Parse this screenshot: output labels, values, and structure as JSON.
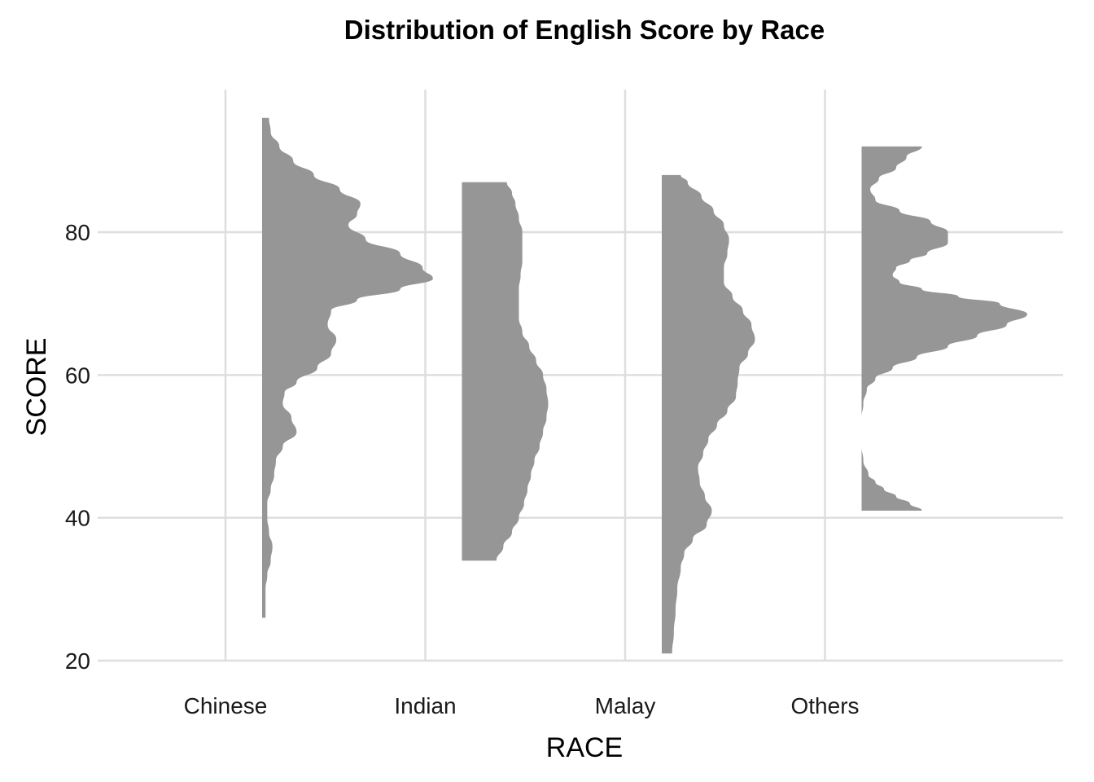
{
  "chart_data": {
    "type": "violin",
    "title": "Distribution of English Score by Race",
    "xlabel": "RACE",
    "ylabel": "SCORE",
    "categories": [
      "Chinese",
      "Indian",
      "Malay",
      "Others"
    ],
    "ylim": [
      18,
      98
    ],
    "yticks": [
      20,
      40,
      60,
      80
    ],
    "grid": true,
    "legend": "none",
    "colors": {
      "fill": "#969696",
      "grid": "#dedede",
      "text": "#000000"
    },
    "series": [
      {
        "category": "Chinese",
        "min": 26,
        "max": 96,
        "density": [
          [
            26,
            0.02
          ],
          [
            28,
            0.02
          ],
          [
            30,
            0.02
          ],
          [
            32,
            0.03
          ],
          [
            34,
            0.05
          ],
          [
            36,
            0.06
          ],
          [
            38,
            0.04
          ],
          [
            40,
            0.03
          ],
          [
            42,
            0.03
          ],
          [
            44,
            0.05
          ],
          [
            46,
            0.07
          ],
          [
            48,
            0.08
          ],
          [
            50,
            0.12
          ],
          [
            52,
            0.2
          ],
          [
            54,
            0.17
          ],
          [
            56,
            0.12
          ],
          [
            57.5,
            0.13
          ],
          [
            59,
            0.2
          ],
          [
            61,
            0.32
          ],
          [
            63,
            0.4
          ],
          [
            65,
            0.43
          ],
          [
            67,
            0.38
          ],
          [
            69,
            0.4
          ],
          [
            70.5,
            0.55
          ],
          [
            72,
            0.8
          ],
          [
            73.5,
            0.99
          ],
          [
            75,
            0.93
          ],
          [
            77,
            0.8
          ],
          [
            79,
            0.6
          ],
          [
            81,
            0.5
          ],
          [
            82.5,
            0.55
          ],
          [
            84,
            0.57
          ],
          [
            86,
            0.45
          ],
          [
            88,
            0.3
          ],
          [
            90,
            0.18
          ],
          [
            92,
            0.1
          ],
          [
            94,
            0.05
          ],
          [
            96,
            0.04
          ]
        ]
      },
      {
        "category": "Indian",
        "min": 34,
        "max": 87,
        "density": [
          [
            34,
            0.2
          ],
          [
            36,
            0.24
          ],
          [
            38,
            0.29
          ],
          [
            40,
            0.33
          ],
          [
            42,
            0.36
          ],
          [
            44,
            0.38
          ],
          [
            46,
            0.4
          ],
          [
            48,
            0.42
          ],
          [
            50,
            0.45
          ],
          [
            52,
            0.47
          ],
          [
            54,
            0.49
          ],
          [
            56,
            0.5
          ],
          [
            58,
            0.49
          ],
          [
            60,
            0.47
          ],
          [
            62,
            0.43
          ],
          [
            64,
            0.39
          ],
          [
            66,
            0.35
          ],
          [
            68,
            0.33
          ],
          [
            70,
            0.33
          ],
          [
            72,
            0.33
          ],
          [
            74,
            0.34
          ],
          [
            76,
            0.35
          ],
          [
            78,
            0.35
          ],
          [
            80,
            0.35
          ],
          [
            82,
            0.33
          ],
          [
            84,
            0.31
          ],
          [
            85.5,
            0.29
          ],
          [
            87,
            0.26
          ]
        ]
      },
      {
        "category": "Malay",
        "min": 21,
        "max": 88,
        "density": [
          [
            21,
            0.06
          ],
          [
            24,
            0.07
          ],
          [
            27,
            0.08
          ],
          [
            30,
            0.09
          ],
          [
            33,
            0.11
          ],
          [
            35,
            0.13
          ],
          [
            37,
            0.18
          ],
          [
            39,
            0.26
          ],
          [
            41,
            0.29
          ],
          [
            43,
            0.25
          ],
          [
            45,
            0.22
          ],
          [
            47,
            0.21
          ],
          [
            49,
            0.24
          ],
          [
            51,
            0.27
          ],
          [
            53,
            0.32
          ],
          [
            55,
            0.38
          ],
          [
            57,
            0.43
          ],
          [
            59,
            0.44
          ],
          [
            61,
            0.45
          ],
          [
            63,
            0.5
          ],
          [
            65,
            0.54
          ],
          [
            67,
            0.52
          ],
          [
            69,
            0.47
          ],
          [
            71,
            0.41
          ],
          [
            73,
            0.36
          ],
          [
            75,
            0.36
          ],
          [
            77,
            0.38
          ],
          [
            79,
            0.39
          ],
          [
            81,
            0.36
          ],
          [
            83,
            0.3
          ],
          [
            85,
            0.23
          ],
          [
            87,
            0.15
          ],
          [
            88,
            0.11
          ]
        ]
      },
      {
        "category": "Others",
        "min": 41,
        "max": 92,
        "density": [
          [
            41,
            0.35
          ],
          [
            42,
            0.28
          ],
          [
            43,
            0.2
          ],
          [
            44,
            0.13
          ],
          [
            45,
            0.08
          ],
          [
            46,
            0.04
          ],
          [
            48,
            0.01
          ],
          [
            50,
            0.0
          ],
          [
            54,
            0.0
          ],
          [
            56,
            0.01
          ],
          [
            58,
            0.03
          ],
          [
            59.5,
            0.08
          ],
          [
            61,
            0.18
          ],
          [
            62.5,
            0.32
          ],
          [
            64,
            0.5
          ],
          [
            65.5,
            0.67
          ],
          [
            67,
            0.84
          ],
          [
            68.5,
            0.96
          ],
          [
            70,
            0.8
          ],
          [
            71,
            0.56
          ],
          [
            72,
            0.35
          ],
          [
            73,
            0.22
          ],
          [
            74,
            0.18
          ],
          [
            75,
            0.2
          ],
          [
            76,
            0.28
          ],
          [
            77,
            0.38
          ],
          [
            78.5,
            0.5
          ],
          [
            80,
            0.5
          ],
          [
            81.5,
            0.4
          ],
          [
            83,
            0.22
          ],
          [
            84.5,
            0.08
          ],
          [
            86,
            0.05
          ],
          [
            87.5,
            0.1
          ],
          [
            89,
            0.2
          ],
          [
            90.5,
            0.26
          ],
          [
            92,
            0.35
          ]
        ]
      }
    ]
  }
}
